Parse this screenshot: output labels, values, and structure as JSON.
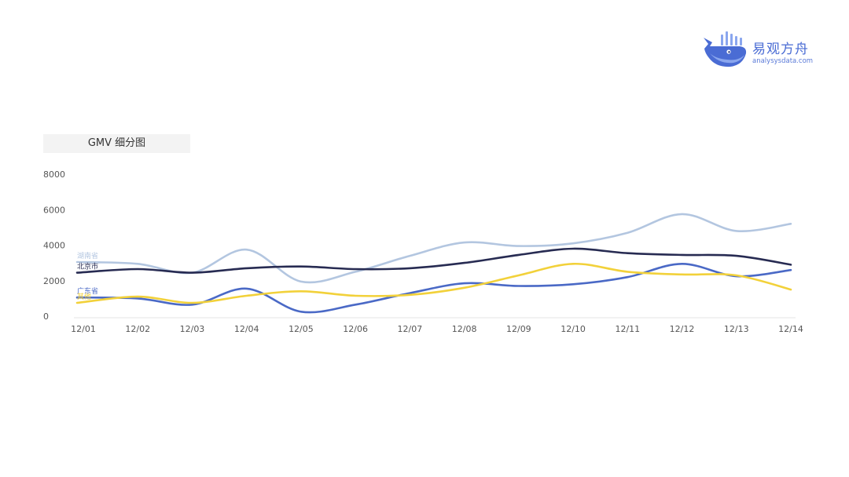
{
  "logo": {
    "name": "易观方舟",
    "url": "analysysdata.com",
    "colors": {
      "primary": "#4a6cd4",
      "light": "#8aa6ee"
    }
  },
  "chart_data": {
    "type": "line",
    "title": "GMV 细分图",
    "categories": [
      "12/01",
      "12/02",
      "12/03",
      "12/04",
      "12/05",
      "12/06",
      "12/07",
      "12/08",
      "12/09",
      "12/10",
      "12/11",
      "12/12",
      "12/13",
      "12/14"
    ],
    "ylim": [
      0,
      8000
    ],
    "yticks": [
      0,
      2000,
      4000,
      6000,
      8000
    ],
    "grid": false,
    "legend": "inline-left",
    "series": [
      {
        "name": "湖南省",
        "color": "#b3c6e0",
        "values": [
          3050,
          2950,
          2450,
          3750,
          1950,
          2500,
          3400,
          4150,
          3950,
          4100,
          4700,
          5750,
          4800,
          5200
        ]
      },
      {
        "name": "北京市",
        "color": "#272b52",
        "values": [
          2450,
          2650,
          2450,
          2700,
          2800,
          2650,
          2700,
          3000,
          3450,
          3800,
          3550,
          3450,
          3400,
          2900
        ]
      },
      {
        "name": "广东省",
        "color": "#4a69c6",
        "values": [
          1050,
          1000,
          650,
          1550,
          250,
          650,
          1300,
          1850,
          1700,
          1800,
          2200,
          2950,
          2250,
          2600
        ]
      },
      {
        "name": "其他",
        "color": "#f2d13a",
        "values": [
          750,
          1100,
          750,
          1150,
          1400,
          1150,
          1200,
          1600,
          2300,
          2950,
          2500,
          2350,
          2300,
          1500
        ]
      }
    ]
  }
}
